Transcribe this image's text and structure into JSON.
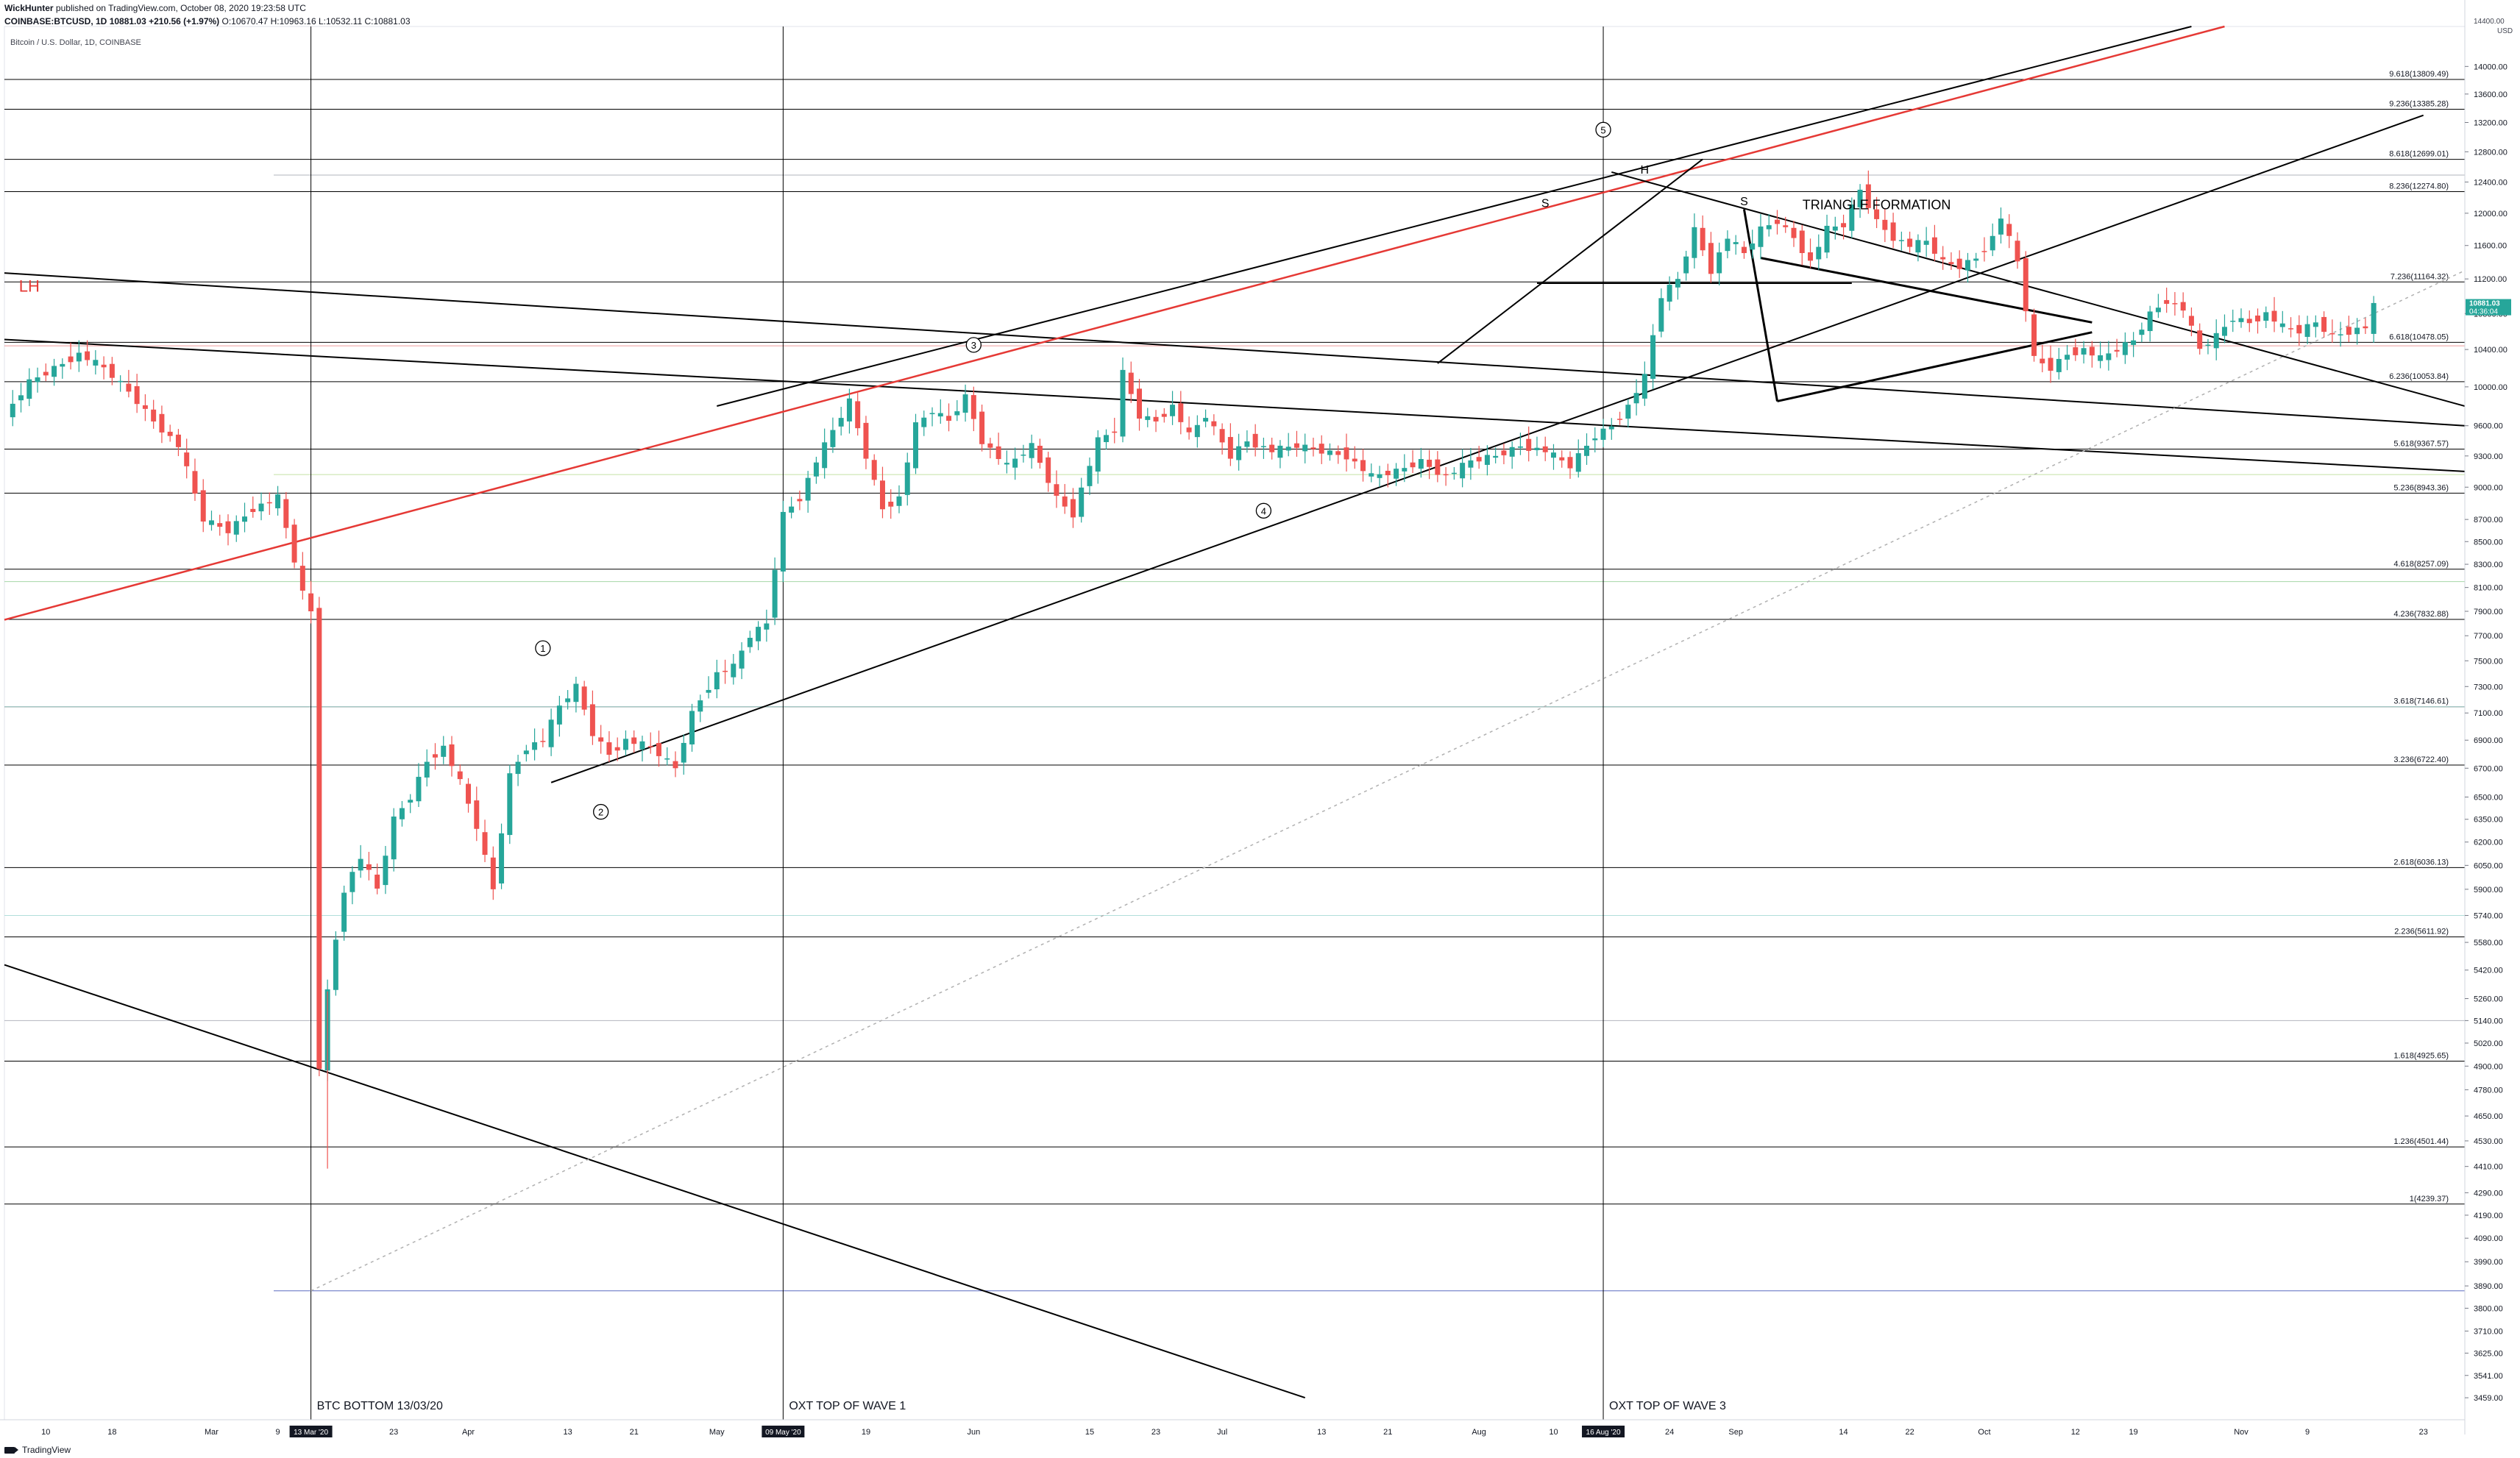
{
  "header": {
    "author": "WickHunter",
    "published": "published on TradingView.com, October 08, 2020 19:23:58 UTC",
    "symbol_line": "COINBASE:BTCUSD, 1D",
    "price": "10881.03",
    "change": "+210.56 (+1.97%)",
    "ohlc": "O:10670.47 H:10963.16 L:10532.11 C:10881.03"
  },
  "symbol_title": "Bitcoin / U.S. Dollar, 1D, COINBASE",
  "footer": {
    "brand": "TradingView"
  },
  "colors": {
    "up": "#26a69a",
    "down": "#ef5350",
    "trend_red": "#e53935",
    "line": "#000000"
  },
  "chart_data": {
    "type": "candlestick",
    "y_axis": {
      "currency": "USD",
      "scale": "log",
      "range": [
        3380,
        14600
      ],
      "ticks": [
        14000,
        13600,
        13200,
        12800,
        12400,
        12000,
        11600,
        11200,
        10800,
        10400,
        10000,
        9600,
        9300,
        9000,
        8700,
        8500,
        8300,
        8100,
        7900,
        7700,
        7500,
        7300,
        7100,
        6900,
        6700,
        6500,
        6350,
        6200,
        6050,
        5900,
        5740,
        5580,
        5420,
        5260,
        5140,
        5020,
        4900,
        4780,
        4650,
        4530,
        4410,
        4290,
        4190,
        4090,
        3990,
        3890,
        3800,
        3710,
        3625,
        3541,
        3459
      ]
    },
    "x_axis": {
      "ticks": [
        {
          "label": "10",
          "date": "2020-02-10"
        },
        {
          "label": "18",
          "date": "2020-02-18"
        },
        {
          "label": "Mar",
          "date": "2020-03-01"
        },
        {
          "label": "9",
          "date": "2020-03-09"
        },
        {
          "label": "23",
          "date": "2020-03-23"
        },
        {
          "label": "Apr",
          "date": "2020-04-01"
        },
        {
          "label": "13",
          "date": "2020-04-13"
        },
        {
          "label": "21",
          "date": "2020-04-21"
        },
        {
          "label": "May",
          "date": "2020-05-01"
        },
        {
          "label": "19",
          "date": "2020-05-19"
        },
        {
          "label": "Jun",
          "date": "2020-06-01"
        },
        {
          "label": "15",
          "date": "2020-06-15"
        },
        {
          "label": "23",
          "date": "2020-06-23"
        },
        {
          "label": "Jul",
          "date": "2020-07-01"
        },
        {
          "label": "13",
          "date": "2020-07-13"
        },
        {
          "label": "21",
          "date": "2020-07-21"
        },
        {
          "label": "Aug",
          "date": "2020-08-01"
        },
        {
          "label": "10",
          "date": "2020-08-10"
        },
        {
          "label": "24",
          "date": "2020-08-24"
        },
        {
          "label": "Sep",
          "date": "2020-09-01"
        },
        {
          "label": "14",
          "date": "2020-09-14"
        },
        {
          "label": "22",
          "date": "2020-09-22"
        },
        {
          "label": "Oct",
          "date": "2020-10-01"
        },
        {
          "label": "12",
          "date": "2020-10-12"
        },
        {
          "label": "19",
          "date": "2020-10-19"
        },
        {
          "label": "Nov",
          "date": "2020-11-01"
        },
        {
          "label": "9",
          "date": "2020-11-09"
        },
        {
          "label": "23",
          "date": "2020-11-23"
        }
      ],
      "highlighted": [
        {
          "label": "13 Mar '20",
          "date": "2020-03-13"
        },
        {
          "label": "09 May '20",
          "date": "2020-05-09"
        },
        {
          "label": "16 Aug '20",
          "date": "2020-08-16"
        }
      ],
      "range": [
        "2020-02-05",
        "2020-11-28"
      ]
    },
    "current_price": {
      "value": 10881.03,
      "label": "10881.03",
      "countdown": "04:36:04"
    },
    "fib_levels": [
      {
        "label": "9.618(13809.49)",
        "value": 13809.49
      },
      {
        "label": "9.236(13385.28)",
        "value": 13385.28
      },
      {
        "label": "8.618(12699.01)",
        "value": 12699.01
      },
      {
        "label": "8.236(12274.80)",
        "value": 12274.8
      },
      {
        "label": "7.236(11164.32)",
        "value": 11164.32
      },
      {
        "label": "6.618(10478.05)",
        "value": 10478.05
      },
      {
        "label": "6.236(10053.84)",
        "value": 10053.84
      },
      {
        "label": "5.618(9367.57)",
        "value": 9367.57
      },
      {
        "label": "5.236(8943.36)",
        "value": 8943.36
      },
      {
        "label": "4.618(8257.09)",
        "value": 8257.09
      },
      {
        "label": "4.236(7832.88)",
        "value": 7832.88
      },
      {
        "label": "3.618(7146.61)",
        "value": 7146.61
      },
      {
        "label": "3.236(6722.40)",
        "value": 6722.4
      },
      {
        "label": "2.618(6036.13)",
        "value": 6036.13
      },
      {
        "label": "2.236(5611.92)",
        "value": 5611.92
      },
      {
        "label": "1.618(4925.65)",
        "value": 4925.65
      },
      {
        "label": "1.236(4501.44)",
        "value": 4501.44
      },
      {
        "label": "1(4239.37)",
        "value": 4239.37
      }
    ],
    "vertical_markers": [
      {
        "date": "2020-03-13",
        "label": "BTC BOTTOM 13/03/20"
      },
      {
        "date": "2020-05-09",
        "label": "OXT TOP OF WAVE 1"
      },
      {
        "date": "2020-08-16",
        "label": "OXT TOP OF WAVE 3"
      }
    ],
    "annotations": [
      {
        "text": "LH",
        "date": "2020-02-08",
        "price": 11050,
        "color": "#e53935"
      },
      {
        "text": "TRIANGLE FORMATION",
        "date": "2020-09-18",
        "price": 12050,
        "color": "#000000"
      },
      {
        "text": "S",
        "date": "2020-08-09",
        "price": 12080,
        "color": "#000000"
      },
      {
        "text": "H",
        "date": "2020-08-21",
        "price": 12510,
        "color": "#000000"
      },
      {
        "text": "S",
        "date": "2020-09-02",
        "price": 12100,
        "color": "#000000"
      }
    ],
    "wave_labels": [
      {
        "text": "1",
        "date": "2020-04-10",
        "price": 7600
      },
      {
        "text": "2",
        "date": "2020-04-17",
        "price": 6400
      },
      {
        "text": "3",
        "date": "2020-06-01",
        "price": 10450
      },
      {
        "text": "4",
        "date": "2020-07-06",
        "price": 8780
      },
      {
        "text": "5",
        "date": "2020-08-16",
        "price": 13100
      }
    ],
    "trendlines": [
      {
        "from": [
          "2020-02-05",
          11270
        ],
        "to": [
          "2020-11-28",
          9600
        ],
        "color": "#000000"
      },
      {
        "from": [
          "2020-02-05",
          10510
        ],
        "to": [
          "2020-11-28",
          9150
        ],
        "color": "#000000"
      },
      {
        "from": [
          "2020-02-05",
          5450
        ],
        "to": [
          "2020-07-11",
          3459
        ],
        "color": "#000000"
      },
      {
        "from": [
          "2020-02-05",
          7830
        ],
        "to": [
          "2020-10-30",
          14600
        ],
        "color": "#e53935"
      },
      {
        "from": [
          "2020-04-11",
          6600
        ],
        "to": [
          "2020-11-23",
          13300
        ],
        "color": "#000000"
      },
      {
        "from": [
          "2020-05-01",
          9800
        ],
        "to": [
          "2020-10-26",
          14600
        ],
        "color": "#000000"
      },
      {
        "from": [
          "2020-03-13",
          3870
        ],
        "to": [
          "2020-11-28",
          11300
        ],
        "color": "#b0b0b0",
        "dashed": true
      },
      {
        "from": [
          "2020-07-27",
          10250
        ],
        "to": [
          "2020-08-28",
          12700
        ],
        "color": "#000000"
      },
      {
        "from": [
          "2020-08-17",
          12530
        ],
        "to": [
          "2020-11-28",
          9800
        ],
        "color": "#000000"
      },
      {
        "from": [
          "2020-08-08",
          11150
        ],
        "to": [
          "2020-09-15",
          11150
        ],
        "color": "#000000"
      }
    ],
    "triangle": {
      "upper": {
        "from": [
          "2020-09-04",
          11450
        ],
        "to": [
          "2020-10-14",
          10700
        ]
      },
      "lower": {
        "from": [
          "2020-09-06",
          9850
        ],
        "to": [
          "2020-10-14",
          10590
        ]
      },
      "left_leg": {
        "from": [
          "2020-09-02",
          12050
        ],
        "to": [
          "2020-09-06",
          9850
        ]
      }
    },
    "candles_note": "Daily BTCUSD candles 2020-02-05 to 2020-10-08; OHLC approximated from the chart."
  }
}
